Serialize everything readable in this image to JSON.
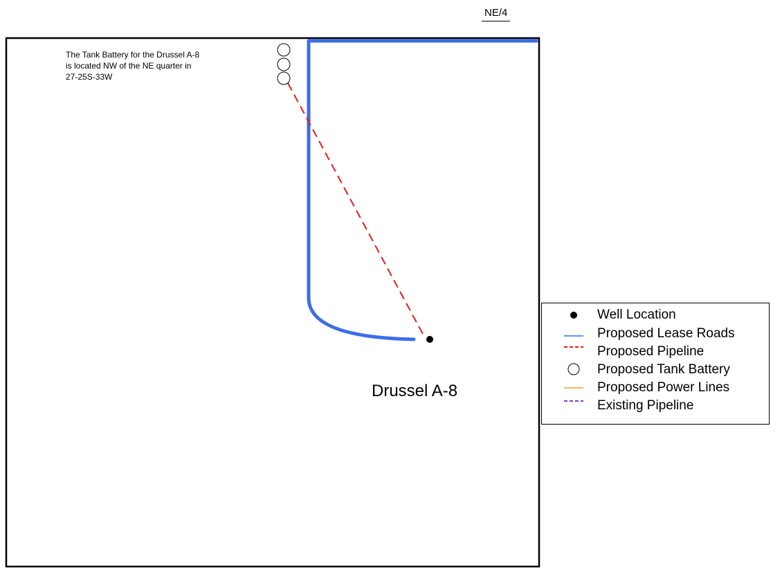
{
  "map": {
    "quarter_label": "NE/4",
    "note_lines": [
      "The Tank Battery for the Drussel A-8",
      "is located NW of the NE quarter in",
      "27-25S-33W"
    ],
    "well_name": "Drussel A-8"
  },
  "colors": {
    "lease_road": "#3c6ee6",
    "pipeline": "#e51c1c",
    "power_line": "#e8a040",
    "existing_pipeline": "#7a3fc0",
    "outline": "#000000"
  },
  "legend": {
    "items": [
      {
        "symbol": "dot-icon",
        "label": "Well Location"
      },
      {
        "symbol": "blue-line-icon",
        "label": "Proposed Lease Roads"
      },
      {
        "symbol": "red-dash-icon",
        "label": "Proposed Pipeline"
      },
      {
        "symbol": "circle-icon",
        "label": "Proposed Tank Battery"
      },
      {
        "symbol": "orange-line-icon",
        "label": "Proposed Power Lines"
      },
      {
        "symbol": "purple-dash-icon",
        "label": "Existing Pipeline"
      }
    ]
  }
}
